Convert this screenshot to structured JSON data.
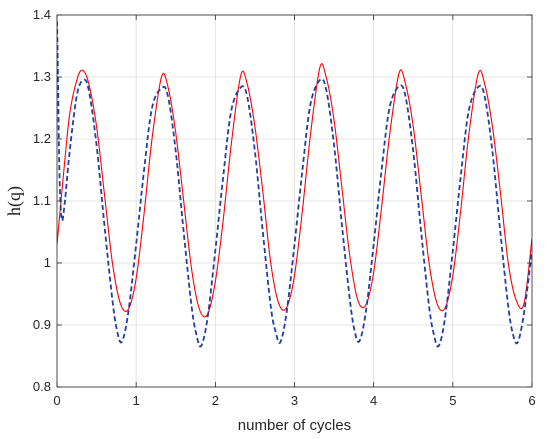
{
  "chart_data": {
    "type": "line",
    "title": "",
    "xlabel": "number of cycles",
    "ylabel": "h(q)",
    "xlim": [
      0,
      6
    ],
    "ylim": [
      0.8,
      1.4
    ],
    "xticks": [
      0,
      1,
      2,
      3,
      4,
      5,
      6
    ],
    "yticks": [
      0.8,
      0.9,
      1,
      1.1,
      1.2,
      1.3,
      1.4
    ],
    "xtick_labels": [
      "0",
      "1",
      "2",
      "3",
      "4",
      "5",
      "6"
    ],
    "ytick_labels": [
      "0.8",
      "0.9",
      "1",
      "1.1",
      "1.2",
      "1.3",
      "1.4"
    ],
    "grid": true,
    "legend": "none",
    "series": [
      {
        "style": "solid",
        "color": "#ff0000",
        "x": [
          0,
          0.08,
          0.16,
          0.25,
          0.32,
          0.4,
          0.5,
          0.6,
          0.7,
          0.8,
          0.9,
          1.0,
          1.1,
          1.2,
          1.32,
          1.4,
          1.5,
          1.6,
          1.7,
          1.8,
          1.9,
          2.0,
          2.1,
          2.2,
          2.32,
          2.4,
          2.5,
          2.6,
          2.7,
          2.8,
          2.9,
          3.0,
          3.1,
          3.2,
          3.32,
          3.4,
          3.5,
          3.6,
          3.7,
          3.8,
          3.9,
          4.0,
          4.1,
          4.2,
          4.32,
          4.4,
          4.5,
          4.6,
          4.7,
          4.8,
          4.9,
          5.0,
          5.1,
          5.2,
          5.32,
          5.4,
          5.5,
          5.6,
          5.7,
          5.8,
          5.9,
          6.0
        ],
        "y": [
          1.03,
          1.14,
          1.24,
          1.295,
          1.311,
          1.29,
          1.22,
          1.11,
          1.0,
          0.935,
          0.925,
          0.975,
          1.08,
          1.2,
          1.3,
          1.285,
          1.21,
          1.1,
          0.99,
          0.925,
          0.917,
          0.97,
          1.07,
          1.19,
          1.302,
          1.29,
          1.22,
          1.115,
          1.0,
          0.935,
          0.928,
          0.98,
          1.085,
          1.205,
          1.315,
          1.3,
          1.23,
          1.12,
          1.01,
          0.94,
          0.932,
          0.985,
          1.09,
          1.205,
          1.306,
          1.29,
          1.22,
          1.11,
          1.0,
          0.935,
          0.927,
          0.98,
          1.085,
          1.205,
          1.305,
          1.29,
          1.22,
          1.115,
          1.0,
          0.94,
          0.935,
          1.04
        ]
      },
      {
        "style": "dashed",
        "color": "#1f3fa8",
        "x": [
          0,
          0.01,
          0.03,
          0.06,
          0.1,
          0.16,
          0.25,
          0.33,
          0.4,
          0.5,
          0.6,
          0.7,
          0.76,
          0.82,
          0.9,
          1.0,
          1.1,
          1.2,
          1.32,
          1.4,
          1.5,
          1.6,
          1.7,
          1.76,
          1.82,
          1.9,
          2.0,
          2.1,
          2.2,
          2.32,
          2.4,
          2.5,
          2.6,
          2.7,
          2.76,
          2.82,
          2.9,
          3.0,
          3.1,
          3.2,
          3.32,
          3.4,
          3.5,
          3.6,
          3.7,
          3.76,
          3.82,
          3.9,
          4.0,
          4.1,
          4.2,
          4.32,
          4.4,
          4.5,
          4.6,
          4.7,
          4.76,
          4.82,
          4.9,
          5.0,
          5.1,
          5.2,
          5.32,
          5.4,
          5.5,
          5.6,
          5.7,
          5.76,
          5.82,
          5.9,
          6.0
        ],
        "y": [
          1.39,
          1.32,
          1.15,
          1.07,
          1.1,
          1.18,
          1.27,
          1.295,
          1.28,
          1.19,
          1.06,
          0.94,
          0.89,
          0.873,
          0.92,
          1.03,
          1.15,
          1.25,
          1.282,
          1.27,
          1.18,
          1.05,
          0.93,
          0.885,
          0.866,
          0.91,
          1.02,
          1.14,
          1.245,
          1.283,
          1.27,
          1.18,
          1.05,
          0.93,
          0.89,
          0.872,
          0.92,
          1.03,
          1.15,
          1.255,
          1.295,
          1.28,
          1.19,
          1.06,
          0.94,
          0.89,
          0.874,
          0.92,
          1.03,
          1.15,
          1.25,
          1.285,
          1.27,
          1.18,
          1.05,
          0.93,
          0.885,
          0.866,
          0.91,
          1.02,
          1.14,
          1.245,
          1.284,
          1.27,
          1.18,
          1.05,
          0.93,
          0.885,
          0.872,
          0.92,
          1.02
        ]
      }
    ]
  }
}
